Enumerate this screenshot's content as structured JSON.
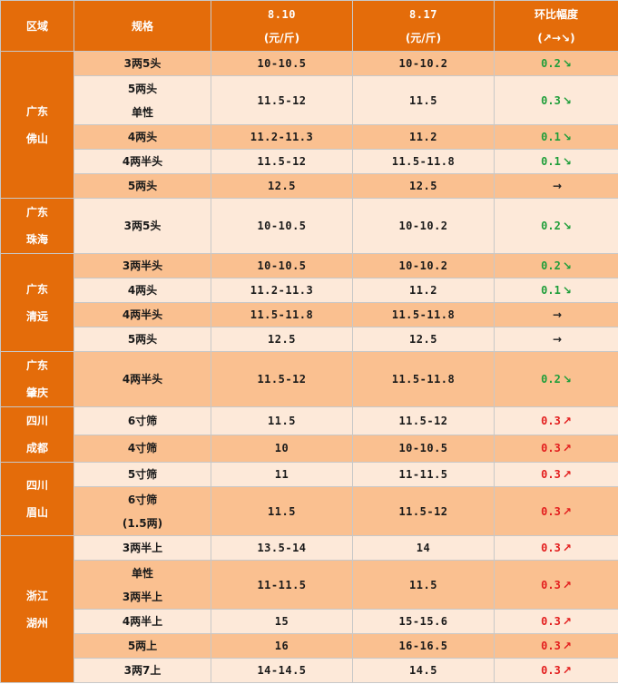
{
  "header": {
    "region": "区域",
    "spec": "规格",
    "date1": "8.10",
    "date1_unit": "(元/斤)",
    "date2": "8.17",
    "date2_unit": "(元/斤)",
    "change": "环比幅度",
    "change_legend": "(↗→↘)"
  },
  "colors": {
    "header_bg": "#e46c0a",
    "row_dark": "#fac090",
    "row_light": "#fde9d9",
    "down": "#1f9e3a",
    "up": "#e31e1e"
  },
  "groups": [
    {
      "region": [
        "广东",
        "佛山"
      ],
      "rows": [
        {
          "spec": [
            "3两5头"
          ],
          "p1": "10-10.5",
          "p2": "10-10.2",
          "chg": "0.2",
          "dir": "↘"
        },
        {
          "spec": [
            "5两头",
            "单性"
          ],
          "p1": "11.5-12",
          "p2": "11.5",
          "chg": "0.3",
          "dir": "↘"
        },
        {
          "spec": [
            "4两头"
          ],
          "p1": "11.2-11.3",
          "p2": "11.2",
          "chg": "0.1",
          "dir": "↘"
        },
        {
          "spec": [
            "4两半头"
          ],
          "p1": "11.5-12",
          "p2": "11.5-11.8",
          "chg": "0.1",
          "dir": "↘"
        },
        {
          "spec": [
            "5两头"
          ],
          "p1": "12.5",
          "p2": "12.5",
          "chg": "",
          "dir": "→"
        }
      ]
    },
    {
      "region": [
        "广东",
        "珠海"
      ],
      "rows": [
        {
          "spec": [
            "3两5头"
          ],
          "p1": "10-10.5",
          "p2": "10-10.2",
          "chg": "0.2",
          "dir": "↘"
        }
      ]
    },
    {
      "region": [
        "广东",
        "清远"
      ],
      "rows": [
        {
          "spec": [
            "3两半头"
          ],
          "p1": "10-10.5",
          "p2": "10-10.2",
          "chg": "0.2",
          "dir": "↘"
        },
        {
          "spec": [
            "4两头"
          ],
          "p1": "11.2-11.3",
          "p2": "11.2",
          "chg": "0.1",
          "dir": "↘"
        },
        {
          "spec": [
            "4两半头"
          ],
          "p1": "11.5-11.8",
          "p2": "11.5-11.8",
          "chg": "",
          "dir": "→"
        },
        {
          "spec": [
            "5两头"
          ],
          "p1": "12.5",
          "p2": "12.5",
          "chg": "",
          "dir": "→"
        }
      ]
    },
    {
      "region": [
        "广东",
        "肇庆"
      ],
      "rows": [
        {
          "spec": [
            "4两半头"
          ],
          "p1": "11.5-12",
          "p2": "11.5-11.8",
          "chg": "0.2",
          "dir": "↘"
        }
      ]
    },
    {
      "region": [
        "四川",
        "成都"
      ],
      "rows": [
        {
          "spec": [
            "6寸筛"
          ],
          "p1": "11.5",
          "p2": "11.5-12",
          "chg": "0.3",
          "dir": "↗"
        },
        {
          "spec": [
            "4寸筛"
          ],
          "p1": "10",
          "p2": "10-10.5",
          "chg": "0.3",
          "dir": "↗"
        }
      ]
    },
    {
      "region": [
        "四川",
        "眉山"
      ],
      "rows": [
        {
          "spec": [
            "5寸筛"
          ],
          "p1": "11",
          "p2": "11-11.5",
          "chg": "0.3",
          "dir": "↗"
        },
        {
          "spec": [
            "6寸筛",
            "(1.5两)"
          ],
          "p1": "11.5",
          "p2": "11.5-12",
          "chg": "0.3",
          "dir": "↗"
        }
      ]
    },
    {
      "region": [
        "浙江",
        "湖州"
      ],
      "rows": [
        {
          "spec": [
            "3两半上"
          ],
          "p1": "13.5-14",
          "p2": "14",
          "chg": "0.3",
          "dir": "↗"
        },
        {
          "spec": [
            "单性",
            "3两半上"
          ],
          "p1": "11-11.5",
          "p2": "11.5",
          "chg": "0.3",
          "dir": "↗"
        },
        {
          "spec": [
            "4两半上"
          ],
          "p1": "15",
          "p2": "15-15.6",
          "chg": "0.3",
          "dir": "↗"
        },
        {
          "spec": [
            "5两上"
          ],
          "p1": "16",
          "p2": "16-16.5",
          "chg": "0.3",
          "dir": "↗"
        },
        {
          "spec": [
            "3两7上"
          ],
          "p1": "14-14.5",
          "p2": "14.5",
          "chg": "0.3",
          "dir": "↗"
        }
      ]
    }
  ]
}
